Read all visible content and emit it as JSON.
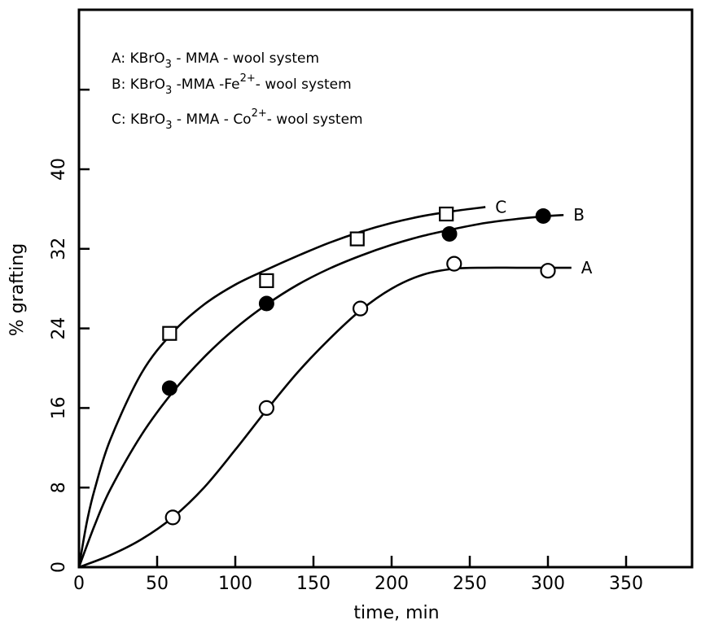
{
  "chart_data": {
    "type": "scatter",
    "xlabel": "time, min",
    "ylabel": "% grafting",
    "xlim": [
      0,
      400
    ],
    "ylim": [
      0,
      48
    ],
    "x_ticks": [
      0,
      50,
      100,
      150,
      200,
      250,
      300,
      350
    ],
    "y_ticks": [
      0,
      8,
      16,
      24,
      32,
      40
    ],
    "grid": false,
    "legend_position": "top-left",
    "legend": [
      {
        "id": "A",
        "prefix": "A: KBrO",
        "sub": "3",
        "rest": " - MMA - wool system",
        "sup": "",
        "tail": ""
      },
      {
        "id": "B",
        "prefix": "B: KBrO",
        "sub": "3",
        "rest": " -MMA -Fe",
        "sup": "2+",
        "tail": "- wool system"
      },
      {
        "id": "C",
        "prefix": "C: KBrO",
        "sub": "3",
        "rest": " - MMA - Co",
        "sup": "2+",
        "tail": "- wool system"
      }
    ],
    "series": [
      {
        "name": "A",
        "marker": "open-circle",
        "x": [
          60,
          120,
          180,
          240,
          300
        ],
        "y": [
          5,
          16,
          26,
          30.5,
          29.8
        ],
        "curve_x": [
          0,
          20,
          40,
          60,
          80,
          100,
          120,
          140,
          160,
          180,
          200,
          220,
          240,
          260,
          280,
          300,
          315
        ],
        "curve_y": [
          0,
          1.2,
          2.8,
          5.0,
          8.0,
          11.8,
          15.8,
          19.6,
          22.9,
          25.8,
          28.0,
          29.4,
          30.0,
          30.1,
          30.1,
          30.1,
          30.1
        ]
      },
      {
        "name": "B",
        "marker": "filled-circle",
        "x": [
          58,
          120,
          237,
          297
        ],
        "y": [
          18,
          26.5,
          33.5,
          35.3
        ],
        "curve_x": [
          0,
          10,
          20,
          40,
          60,
          80,
          100,
          120,
          140,
          160,
          180,
          200,
          220,
          240,
          260,
          280,
          300,
          310
        ],
        "curve_y": [
          0,
          4.2,
          7.8,
          13.3,
          17.6,
          21.1,
          24.0,
          26.4,
          28.4,
          30.0,
          31.3,
          32.4,
          33.3,
          34.0,
          34.6,
          35.0,
          35.3,
          35.4
        ]
      },
      {
        "name": "C",
        "marker": "open-square",
        "x": [
          58,
          120,
          178,
          235
        ],
        "y": [
          23.5,
          28.8,
          33.0,
          35.5
        ],
        "curve_x": [
          0,
          5,
          10,
          20,
          40,
          60,
          80,
          100,
          120,
          140,
          160,
          180,
          200,
          220,
          240,
          260
        ],
        "curve_y": [
          0,
          4.5,
          7.8,
          12.8,
          19.5,
          23.6,
          26.4,
          28.4,
          29.9,
          31.3,
          32.6,
          33.7,
          34.6,
          35.3,
          35.8,
          36.2
        ]
      }
    ]
  }
}
